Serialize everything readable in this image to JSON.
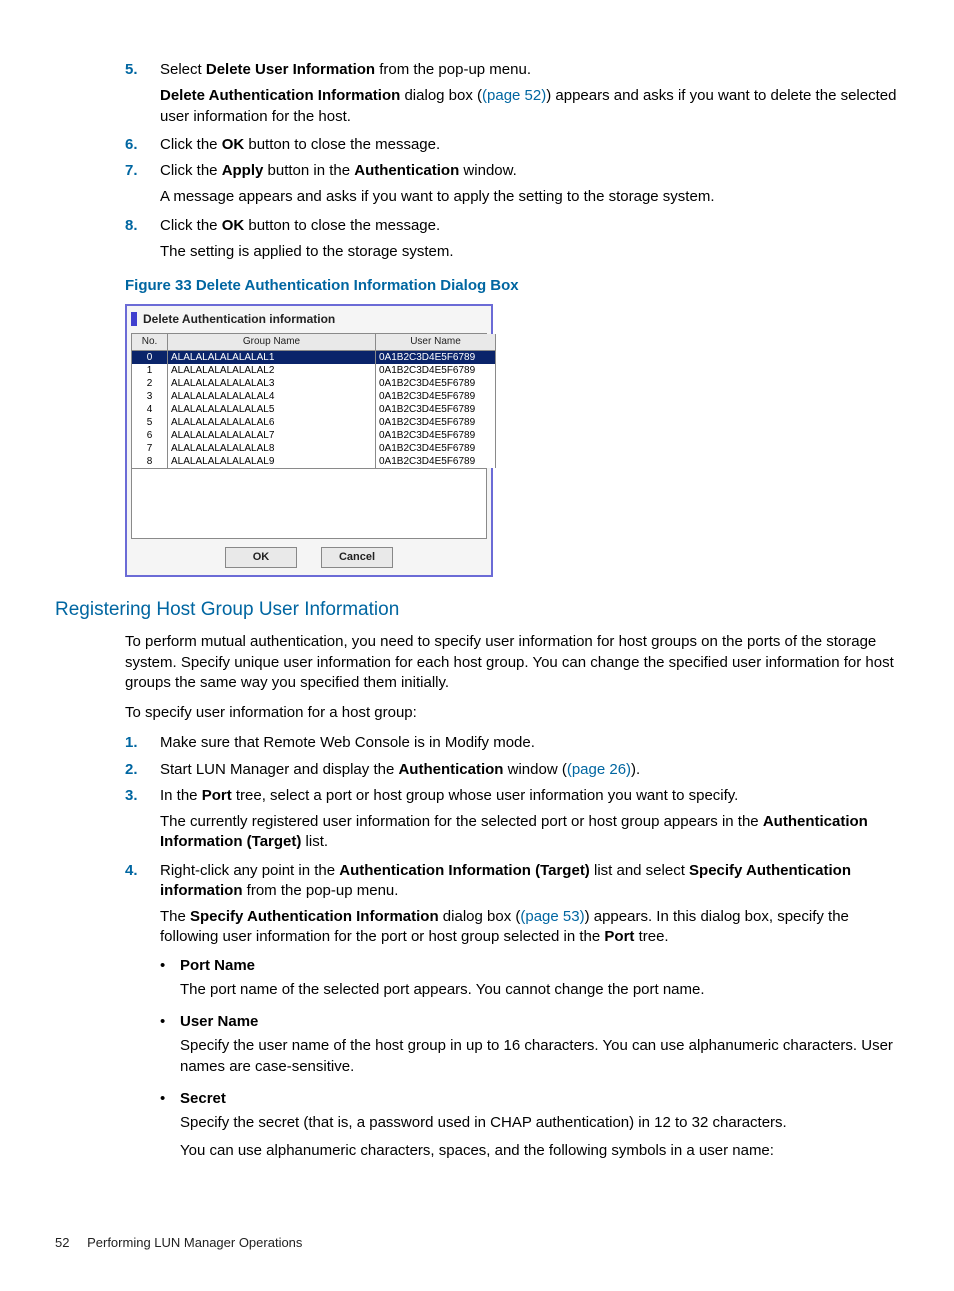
{
  "steps_a": [
    {
      "n": "5.",
      "html": "Select <b>Delete User Information</b> from the pop-up menu.",
      "follow": "<b>Delete Authentication Information</b> dialog box (<span class='link'>(page 52)</span>) appears and asks if you want to delete the selected user information for the host."
    },
    {
      "n": "6.",
      "html": "Click the <b>OK</b> button to close the message."
    },
    {
      "n": "7.",
      "html": "Click the <b>Apply</b> button in the <b>Authentication</b> window.",
      "follow": "A message appears and asks if you want to apply the setting to the storage system."
    },
    {
      "n": "8.",
      "html": "Click the <b>OK</b> button to close the message.",
      "follow": "The setting is applied to the storage system."
    }
  ],
  "figure_caption": "Figure 33 Delete Authentication Information Dialog Box",
  "dialog": {
    "title": "Delete Authentication information",
    "columns": [
      "No.",
      "Group Name",
      "User Name"
    ],
    "rows": [
      {
        "no": "0",
        "group": "ALALALALALALALAL1",
        "user": "0A1B2C3D4E5F6789",
        "sel": true
      },
      {
        "no": "1",
        "group": "ALALALALALALALAL2",
        "user": "0A1B2C3D4E5F6789",
        "sel": false
      },
      {
        "no": "2",
        "group": "ALALALALALALALAL3",
        "user": "0A1B2C3D4E5F6789",
        "sel": false
      },
      {
        "no": "3",
        "group": "ALALALALALALALAL4",
        "user": "0A1B2C3D4E5F6789",
        "sel": false
      },
      {
        "no": "4",
        "group": "ALALALALALALALAL5",
        "user": "0A1B2C3D4E5F6789",
        "sel": false
      },
      {
        "no": "5",
        "group": "ALALALALALALALAL6",
        "user": "0A1B2C3D4E5F6789",
        "sel": false
      },
      {
        "no": "6",
        "group": "ALALALALALALALAL7",
        "user": "0A1B2C3D4E5F6789",
        "sel": false
      },
      {
        "no": "7",
        "group": "ALALALALALALALAL8",
        "user": "0A1B2C3D4E5F6789",
        "sel": false
      },
      {
        "no": "8",
        "group": "ALALALALALALALAL9",
        "user": "0A1B2C3D4E5F6789",
        "sel": false
      }
    ],
    "ok": "OK",
    "cancel": "Cancel"
  },
  "section_title": "Registering Host Group User Information",
  "para1": "To perform mutual authentication, you need to specify user information for host groups on the ports of the storage system. Specify unique user information for each host group. You can change the specified user information for host groups the same way you specified them initially.",
  "para2": "To specify user information for a host group:",
  "steps_b": [
    {
      "n": "1.",
      "html": "Make sure that Remote Web Console is in Modify mode."
    },
    {
      "n": "2.",
      "html": "Start LUN Manager and display the <b>Authentication</b> window (<span class='link'>(page 26)</span>)."
    },
    {
      "n": "3.",
      "html": "In the <b>Port</b> tree, select a port or host group whose user information you want to specify.",
      "follow": "The currently registered user information for the selected port or host group appears in the <b>Authentication Information (Target)</b> list."
    },
    {
      "n": "4.",
      "html": "Right-click any point in the <b>Authentication Information (Target)</b> list and select <b>Specify Authentication information</b> from the pop-up menu.",
      "follow": "The <b>Specify Authentication Information</b> dialog box (<span class='link'>(page 53)</span>) appears. In this dialog box, specify the following user information for the port or host group selected in the <b>Port</b> tree."
    }
  ],
  "bullets": [
    {
      "title": "Port Name",
      "body": "The port name of the selected port appears. You cannot change the port name."
    },
    {
      "title": "User Name",
      "body": "Specify the user name of the host group in up to 16 characters. You can use alphanumeric characters. User names are case-sensitive."
    },
    {
      "title": "Secret",
      "body": "Specify the secret (that is, a password used in CHAP authentication) in 12 to 32 characters.",
      "body2": "You can use alphanumeric characters, spaces, and the following symbols in a user name:"
    }
  ],
  "footer": {
    "page": "52",
    "title": "Performing LUN Manager Operations"
  }
}
